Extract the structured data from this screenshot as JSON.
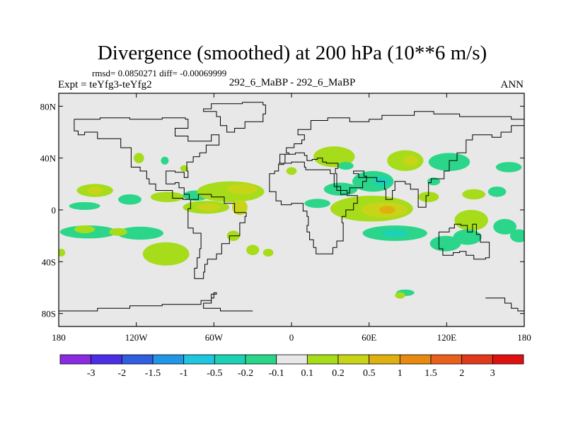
{
  "chart_data": {
    "type": "heatmap",
    "title": "Divergence (smoothed) at 200 hPa (10**6 m/s)",
    "stats_text": "rmsd= 0.0850271 diff= -0.00069999",
    "case_label": "Expt = teYfg3-teYfg2",
    "subtitle": "292_6_MaBP - 292_6_MaBP",
    "season": "ANN",
    "x_range": [
      -180,
      180
    ],
    "y_range": [
      -90,
      90
    ],
    "x_ticks": [
      {
        "value": -180,
        "label": "180"
      },
      {
        "value": -120,
        "label": "120W"
      },
      {
        "value": -60,
        "label": "60W"
      },
      {
        "value": 0,
        "label": "0"
      },
      {
        "value": 60,
        "label": "60E"
      },
      {
        "value": 120,
        "label": "120E"
      },
      {
        "value": 180,
        "label": "180"
      }
    ],
    "y_ticks": [
      {
        "value": 80,
        "label": "80N"
      },
      {
        "value": 40,
        "label": "40N"
      },
      {
        "value": 0,
        "label": "0"
      },
      {
        "value": -40,
        "label": "40S"
      },
      {
        "value": -80,
        "label": "80S"
      }
    ],
    "colorbar": {
      "labels": [
        "-3",
        "-2",
        "-1.5",
        "-1",
        "-0.5",
        "-0.2",
        "-0.1",
        "0.1",
        "0.2",
        "0.5",
        "1",
        "1.5",
        "2",
        "3"
      ],
      "colors": [
        "#8a2be2",
        "#4b2ee6",
        "#2f5fe0",
        "#2296e6",
        "#1ec6e0",
        "#1dd2b4",
        "#2bd68a",
        "#e8e8e8",
        "#a6dc1a",
        "#c8d418",
        "#e0b010",
        "#e88a10",
        "#e8601a",
        "#e03a1a",
        "#e01010"
      ]
    },
    "missing_color": "#e8e8e8",
    "blobs": [
      {
        "lon": -118,
        "lat": 40,
        "rx": 4,
        "ry": 4,
        "level": "0.2"
      },
      {
        "lon": -98,
        "lat": 38,
        "rx": 3,
        "ry": 3,
        "level": "-0.1"
      },
      {
        "lon": -83,
        "lat": 32,
        "rx": 3,
        "ry": 2.5,
        "level": "0.1"
      },
      {
        "lon": -152,
        "lat": 15,
        "rx": 14,
        "ry": 5,
        "level": "0.2"
      },
      {
        "lon": -152,
        "lat": 15,
        "rx": 6,
        "ry": 3,
        "level": "0.5"
      },
      {
        "lon": -125,
        "lat": 8,
        "rx": 9,
        "ry": 4,
        "level": "-0.1"
      },
      {
        "lon": -96,
        "lat": 10,
        "rx": 13,
        "ry": 4,
        "level": "0.2"
      },
      {
        "lon": -160,
        "lat": 3,
        "rx": 12,
        "ry": 3,
        "level": "-0.1"
      },
      {
        "lon": -74,
        "lat": 11,
        "rx": 10,
        "ry": 4,
        "level": "-0.1"
      },
      {
        "lon": -47,
        "lat": 14,
        "rx": 26,
        "ry": 8,
        "level": "0.2"
      },
      {
        "lon": -38,
        "lat": 16,
        "rx": 12,
        "ry": 4,
        "level": "0.5"
      },
      {
        "lon": -66,
        "lat": 2,
        "rx": 18,
        "ry": 5,
        "level": "0.2"
      },
      {
        "lon": -64,
        "lat": 2,
        "rx": 9,
        "ry": 3,
        "level": "0.5"
      },
      {
        "lon": -40,
        "lat": 2,
        "rx": 6,
        "ry": 6,
        "level": "0.5"
      },
      {
        "lon": -157,
        "lat": -17,
        "rx": 22,
        "ry": 5,
        "level": "-0.1"
      },
      {
        "lon": -160,
        "lat": -15,
        "rx": 8,
        "ry": 3,
        "level": "0.2"
      },
      {
        "lon": -117,
        "lat": -18,
        "rx": 18,
        "ry": 5,
        "level": "-0.1"
      },
      {
        "lon": -134,
        "lat": -17,
        "rx": 7,
        "ry": 3,
        "level": "0.2"
      },
      {
        "lon": -178,
        "lat": -33,
        "rx": 3,
        "ry": 3,
        "level": "0.2"
      },
      {
        "lon": -97,
        "lat": -34,
        "rx": 18,
        "ry": 9,
        "level": "0.2"
      },
      {
        "lon": -30,
        "lat": -31,
        "rx": 5,
        "ry": 4,
        "level": "0.2"
      },
      {
        "lon": -18,
        "lat": -33,
        "rx": 4,
        "ry": 3,
        "level": "0.2"
      },
      {
        "lon": 33,
        "lat": 41,
        "rx": 16,
        "ry": 8,
        "level": "0.2"
      },
      {
        "lon": 42,
        "lat": 34,
        "rx": 6,
        "ry": 3,
        "level": "-0.1"
      },
      {
        "lon": 0,
        "lat": 30,
        "rx": 4,
        "ry": 3,
        "level": "0.2"
      },
      {
        "lon": 38,
        "lat": 16,
        "rx": 13,
        "ry": 5,
        "level": "-0.1"
      },
      {
        "lon": 20,
        "lat": 5,
        "rx": 10,
        "ry": 3.5,
        "level": "-0.1"
      },
      {
        "lon": 63,
        "lat": 22,
        "rx": 16,
        "ry": 8,
        "level": "-0.1"
      },
      {
        "lon": 70,
        "lat": 22,
        "rx": 7,
        "ry": 4,
        "level": "-0.2"
      },
      {
        "lon": 88,
        "lat": 38,
        "rx": 14,
        "ry": 8,
        "level": "0.2"
      },
      {
        "lon": 92,
        "lat": 38,
        "rx": 6,
        "ry": 4,
        "level": "0.5"
      },
      {
        "lon": 122,
        "lat": 37,
        "rx": 16,
        "ry": 7,
        "level": "-0.1"
      },
      {
        "lon": 168,
        "lat": 33,
        "rx": 10,
        "ry": 4,
        "level": "-0.1"
      },
      {
        "lon": 62,
        "lat": 1,
        "rx": 32,
        "ry": 10,
        "level": "0.2"
      },
      {
        "lon": 72,
        "lat": 0,
        "rx": 18,
        "ry": 6,
        "level": "0.5"
      },
      {
        "lon": 74,
        "lat": 0,
        "rx": 6,
        "ry": 3,
        "level": "1"
      },
      {
        "lon": 106,
        "lat": 10,
        "rx": 8,
        "ry": 4,
        "level": "0.2"
      },
      {
        "lon": 80,
        "lat": -18,
        "rx": 25,
        "ry": 6,
        "level": "-0.1"
      },
      {
        "lon": 80,
        "lat": -18,
        "rx": 10,
        "ry": 3,
        "level": "-0.2"
      },
      {
        "lon": 119,
        "lat": -26,
        "rx": 12,
        "ry": 6,
        "level": "-0.1"
      },
      {
        "lon": 141,
        "lat": 12,
        "rx": 9,
        "ry": 4,
        "level": "0.2"
      },
      {
        "lon": 159,
        "lat": 14,
        "rx": 7,
        "ry": 4,
        "level": "-0.1"
      },
      {
        "lon": 139,
        "lat": -8,
        "rx": 13,
        "ry": 8,
        "level": "0.2"
      },
      {
        "lon": 136,
        "lat": -21,
        "rx": 11,
        "ry": 6,
        "level": "-0.1"
      },
      {
        "lon": 165,
        "lat": -13,
        "rx": 9,
        "ry": 6,
        "level": "-0.1"
      },
      {
        "lon": 176,
        "lat": -20,
        "rx": 7,
        "ry": 5,
        "level": "-0.1"
      },
      {
        "lon": 88,
        "lat": -64,
        "rx": 7,
        "ry": 2.5,
        "level": "-0.1"
      },
      {
        "lon": 84,
        "lat": -66,
        "rx": 4,
        "ry": 2.5,
        "level": "0.2"
      },
      {
        "lon": -45,
        "lat": -20,
        "rx": 5,
        "ry": 4,
        "level": "0.2"
      },
      {
        "lon": 110,
        "lat": 22,
        "rx": 5,
        "ry": 3,
        "level": "-0.1"
      }
    ],
    "coastlines": [
      {
        "name": "greenland",
        "points": [
          [
            -38,
            83
          ],
          [
            -22,
            81
          ],
          [
            -20,
            74
          ],
          [
            -22,
            68
          ],
          [
            -36,
            63
          ],
          [
            -44,
            60
          ],
          [
            -50,
            65
          ],
          [
            -55,
            72
          ],
          [
            -58,
            76
          ],
          [
            -68,
            78
          ],
          [
            -62,
            82
          ],
          [
            -38,
            83
          ]
        ]
      },
      {
        "name": "north-america",
        "points": [
          [
            -168,
            70
          ],
          [
            -148,
            71
          ],
          [
            -125,
            70
          ],
          [
            -100,
            71
          ],
          [
            -82,
            70
          ],
          [
            -80,
            63
          ],
          [
            -90,
            57
          ],
          [
            -80,
            53
          ],
          [
            -62,
            58
          ],
          [
            -56,
            50
          ],
          [
            -66,
            44
          ],
          [
            -71,
            41
          ],
          [
            -76,
            37
          ],
          [
            -81,
            30
          ],
          [
            -80,
            25
          ],
          [
            -83,
            29
          ],
          [
            -90,
            30
          ],
          [
            -97,
            26
          ],
          [
            -97,
            20
          ],
          [
            -90,
            21
          ],
          [
            -87,
            17
          ],
          [
            -83,
            12
          ],
          [
            -79,
            8
          ],
          [
            -84,
            9
          ],
          [
            -92,
            15
          ],
          [
            -105,
            20
          ],
          [
            -110,
            24
          ],
          [
            -112,
            30
          ],
          [
            -117,
            33
          ],
          [
            -124,
            40
          ],
          [
            -124,
            48
          ],
          [
            -132,
            55
          ],
          [
            -150,
            60
          ],
          [
            -160,
            58
          ],
          [
            -165,
            61
          ],
          [
            -168,
            66
          ],
          [
            -168,
            70
          ]
        ]
      },
      {
        "name": "south-america",
        "points": [
          [
            -78,
            8
          ],
          [
            -72,
            12
          ],
          [
            -62,
            10
          ],
          [
            -52,
            5
          ],
          [
            -44,
            -2
          ],
          [
            -35,
            -5
          ],
          [
            -36,
            -10
          ],
          [
            -40,
            -20
          ],
          [
            -48,
            -26
          ],
          [
            -54,
            -34
          ],
          [
            -58,
            -38
          ],
          [
            -65,
            -42
          ],
          [
            -67,
            -48
          ],
          [
            -68,
            -53
          ],
          [
            -73,
            -53
          ],
          [
            -75,
            -45
          ],
          [
            -73,
            -37
          ],
          [
            -71,
            -30
          ],
          [
            -70,
            -18
          ],
          [
            -76,
            -14
          ],
          [
            -80,
            -5
          ],
          [
            -80,
            1
          ],
          [
            -78,
            8
          ]
        ]
      },
      {
        "name": "eurasia",
        "points": [
          [
            -10,
            36
          ],
          [
            -9,
            43
          ],
          [
            -2,
            44
          ],
          [
            -4,
            48
          ],
          [
            2,
            51
          ],
          [
            8,
            54
          ],
          [
            10,
            58
          ],
          [
            5,
            62
          ],
          [
            15,
            69
          ],
          [
            28,
            71
          ],
          [
            45,
            68
          ],
          [
            60,
            70
          ],
          [
            70,
            73
          ],
          [
            80,
            73
          ],
          [
            95,
            76
          ],
          [
            110,
            74
          ],
          [
            130,
            72
          ],
          [
            150,
            72
          ],
          [
            170,
            70
          ],
          [
            180,
            68
          ],
          [
            180,
            65
          ],
          [
            170,
            60
          ],
          [
            162,
            56
          ],
          [
            155,
            58
          ],
          [
            140,
            54
          ],
          [
            135,
            44
          ],
          [
            128,
            38
          ],
          [
            122,
            30
          ],
          [
            118,
            24
          ],
          [
            108,
            21
          ],
          [
            106,
            11
          ],
          [
            104,
            2
          ],
          [
            98,
            8
          ],
          [
            98,
            16
          ],
          [
            92,
            20
          ],
          [
            88,
            22
          ],
          [
            80,
            15
          ],
          [
            78,
            8
          ],
          [
            73,
            16
          ],
          [
            72,
            22
          ],
          [
            66,
            25
          ],
          [
            58,
            25
          ],
          [
            52,
            28
          ],
          [
            48,
            30
          ],
          [
            56,
            26
          ],
          [
            58,
            22
          ],
          [
            55,
            17
          ],
          [
            45,
            13
          ],
          [
            43,
            15
          ],
          [
            35,
            28
          ],
          [
            34,
            32
          ],
          [
            36,
            36
          ],
          [
            27,
            37
          ],
          [
            24,
            40
          ],
          [
            20,
            39
          ],
          [
            16,
            38
          ],
          [
            12,
            42
          ],
          [
            10,
            44
          ],
          [
            3,
            43
          ],
          [
            -5,
            36
          ],
          [
            -10,
            36
          ]
        ]
      },
      {
        "name": "africa",
        "points": [
          [
            -17,
            21
          ],
          [
            -17,
            14
          ],
          [
            -12,
            7
          ],
          [
            -8,
            4
          ],
          [
            0,
            5
          ],
          [
            9,
            4
          ],
          [
            9,
            -1
          ],
          [
            12,
            -5
          ],
          [
            13,
            -12
          ],
          [
            12,
            -17
          ],
          [
            14,
            -23
          ],
          [
            17,
            -29
          ],
          [
            19,
            -34
          ],
          [
            26,
            -34
          ],
          [
            32,
            -29
          ],
          [
            35,
            -24
          ],
          [
            40,
            -15
          ],
          [
            40,
            -10
          ],
          [
            39,
            -5
          ],
          [
            42,
            0
          ],
          [
            48,
            5
          ],
          [
            51,
            11
          ],
          [
            43,
            12
          ],
          [
            38,
            18
          ],
          [
            33,
            28
          ],
          [
            30,
            31
          ],
          [
            20,
            31
          ],
          [
            11,
            33
          ],
          [
            10,
            37
          ],
          [
            0,
            36
          ],
          [
            -6,
            35
          ],
          [
            -10,
            30
          ],
          [
            -13,
            28
          ],
          [
            -17,
            21
          ]
        ]
      },
      {
        "name": "australia",
        "points": [
          [
            114,
            -22
          ],
          [
            114,
            -30
          ],
          [
            117,
            -35
          ],
          [
            125,
            -33
          ],
          [
            130,
            -32
          ],
          [
            135,
            -35
          ],
          [
            138,
            -35
          ],
          [
            141,
            -38
          ],
          [
            147,
            -38
          ],
          [
            150,
            -37
          ],
          [
            153,
            -30
          ],
          [
            153,
            -25
          ],
          [
            146,
            -19
          ],
          [
            143,
            -11
          ],
          [
            140,
            -17
          ],
          [
            136,
            -12
          ],
          [
            131,
            -11
          ],
          [
            126,
            -14
          ],
          [
            122,
            -17
          ],
          [
            114,
            -22
          ]
        ]
      },
      {
        "name": "antarctica-lon-west",
        "points": [
          [
            -180,
            -78
          ],
          [
            -165,
            -78
          ],
          [
            -150,
            -76
          ],
          [
            -125,
            -74
          ],
          [
            -100,
            -73
          ],
          [
            -80,
            -73
          ],
          [
            -70,
            -70
          ],
          [
            -62,
            -65
          ],
          [
            -58,
            -64
          ],
          [
            -60,
            -68
          ],
          [
            -62,
            -72
          ],
          [
            -68,
            -76
          ],
          [
            -55,
            -78
          ],
          [
            -40,
            -78
          ],
          [
            -30,
            -78
          ]
        ]
      },
      {
        "name": "antarctica-lon-east",
        "points": [
          [
            150,
            -68
          ],
          [
            165,
            -72
          ],
          [
            170,
            -76
          ],
          [
            175,
            -78
          ],
          [
            180,
            -78
          ]
        ]
      }
    ]
  }
}
